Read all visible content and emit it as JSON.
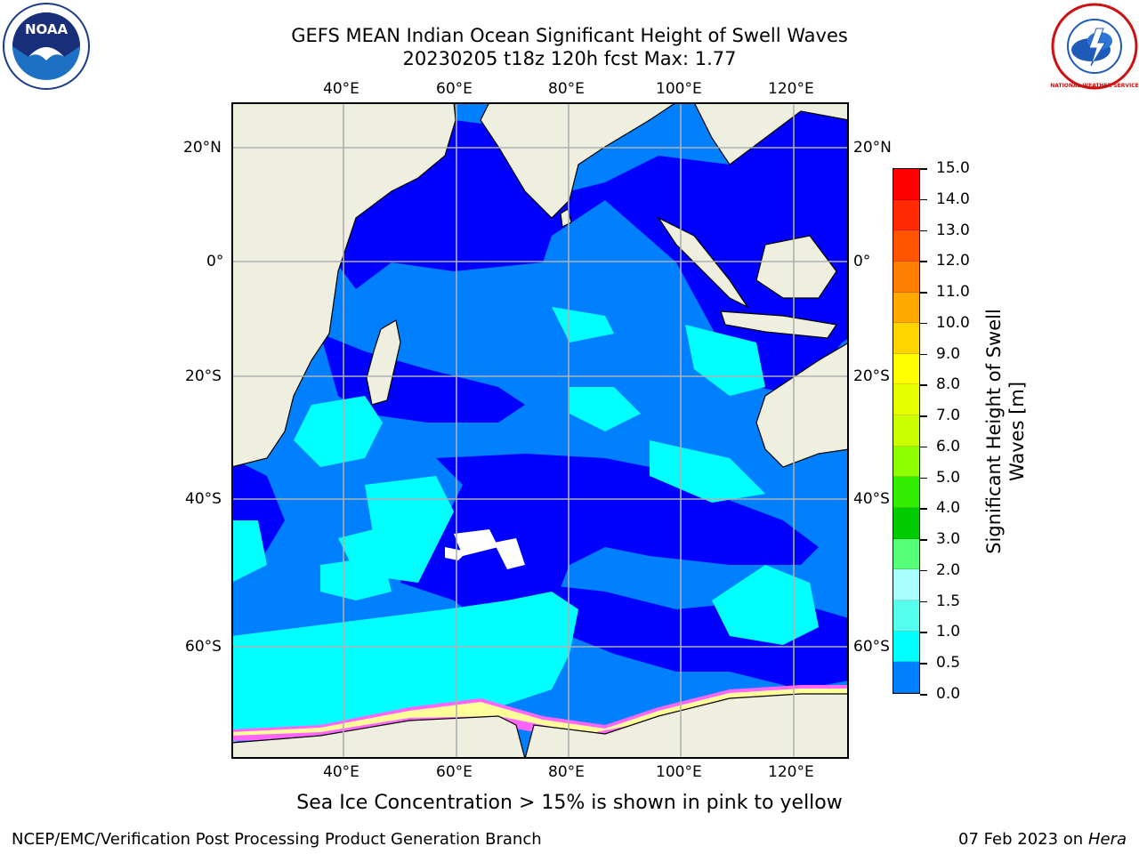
{
  "title_line1": "GEFS MEAN Indian Ocean Significant Height of Swell Waves",
  "title_line2": "20230205 t18z 120h fcst   Max: 1.77",
  "logos": {
    "left": "NOAA",
    "right": "NATIONAL WEATHER SERVICE"
  },
  "map": {
    "lon_ticks": [
      "40°E",
      "60°E",
      "80°E",
      "100°E",
      "120°E"
    ],
    "lat_ticks": [
      "20°N",
      "0°",
      "20°S",
      "40°S",
      "60°S"
    ],
    "colors": {
      "land": "#efefdf",
      "ice_note": "pink to yellow"
    }
  },
  "colorbar": {
    "title_line1": "Significant Height of Swell",
    "title_line2": "Waves [m]",
    "labels": [
      "15.0",
      "14.0",
      "13.0",
      "12.0",
      "11.0",
      "10.0",
      "9.0",
      "8.0",
      "7.0",
      "6.0",
      "5.0",
      "4.0",
      "3.0",
      "2.0",
      "1.5",
      "1.0",
      "0.5",
      "0.0"
    ],
    "colors": [
      "#ff0000",
      "#ff2a00",
      "#ff5500",
      "#ff8000",
      "#ffaa00",
      "#ffd500",
      "#ffff00",
      "#e6ff00",
      "#ccff00",
      "#8cff00",
      "#33ee00",
      "#00cc00",
      "#55ff77",
      "#aaffff",
      "#55ffee",
      "#00ffff",
      "#0080ff",
      "#0000ff"
    ]
  },
  "note": "Sea Ice Concentration > 15% is shown in pink to yellow",
  "footer_left": "NCEP/EMC/Verification Post Processing Product Generation Branch",
  "footer_right_date": "07 Feb 2023 on",
  "footer_right_host": "Hera"
}
